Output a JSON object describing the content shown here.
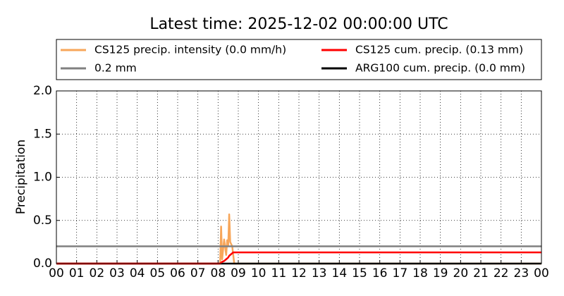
{
  "chart_data": {
    "type": "line",
    "title": "Latest time: 2025-12-02 00:00:00 UTC",
    "ylabel": "Precipitation",
    "x": [
      0,
      8.1,
      8.15,
      8.2,
      8.3,
      8.4,
      8.45,
      8.5,
      8.55,
      8.6,
      8.7,
      8.75,
      8.8,
      24
    ],
    "series": [
      {
        "name": "CS125 precip. intensity (0.0 mm/h)",
        "color": "#f7a65a",
        "values": [
          0,
          0,
          0.43,
          0.05,
          0.28,
          0.1,
          0.27,
          0.2,
          0.57,
          0.25,
          0.2,
          0.1,
          0,
          0
        ]
      },
      {
        "name": "0.2 mm",
        "color": "#808080",
        "values": [
          0.2,
          0.2,
          0.2,
          0.2,
          0.2,
          0.2,
          0.2,
          0.2,
          0.2,
          0.2,
          0.2,
          0.2,
          0.2,
          0.2
        ]
      },
      {
        "name": "CS125 cum. precip. (0.13 mm)",
        "color": "#ff0000",
        "values": [
          0,
          0,
          0.01,
          0.02,
          0.03,
          0.05,
          0.06,
          0.07,
          0.09,
          0.1,
          0.12,
          0.13,
          0.13,
          0.13
        ]
      },
      {
        "name": "ARG100 cum. precip. (0.0 mm)",
        "color": "#000000",
        "values": [
          0,
          0,
          0,
          0,
          0,
          0,
          0,
          0,
          0,
          0,
          0,
          0,
          0,
          0
        ]
      }
    ],
    "xlim": [
      0,
      24
    ],
    "xticks": [
      {
        "value": 0,
        "label": "00"
      },
      {
        "value": 1,
        "label": "01"
      },
      {
        "value": 2,
        "label": "02"
      },
      {
        "value": 3,
        "label": "03"
      },
      {
        "value": 4,
        "label": "04"
      },
      {
        "value": 5,
        "label": "05"
      },
      {
        "value": 6,
        "label": "06"
      },
      {
        "value": 7,
        "label": "07"
      },
      {
        "value": 8,
        "label": "08"
      },
      {
        "value": 9,
        "label": "09"
      },
      10,
      11,
      12,
      13,
      14,
      15,
      16,
      17,
      18,
      19,
      20,
      21,
      22,
      23,
      {
        "value": 24,
        "label": "00"
      }
    ],
    "ylim": [
      0,
      2
    ],
    "yticks": [
      {
        "value": 0,
        "label": "0.0"
      },
      0.5,
      {
        "value": 1,
        "label": "1.0"
      },
      1.5,
      {
        "value": 2,
        "label": "2.0"
      }
    ],
    "grid": true,
    "legend": "upper center"
  }
}
